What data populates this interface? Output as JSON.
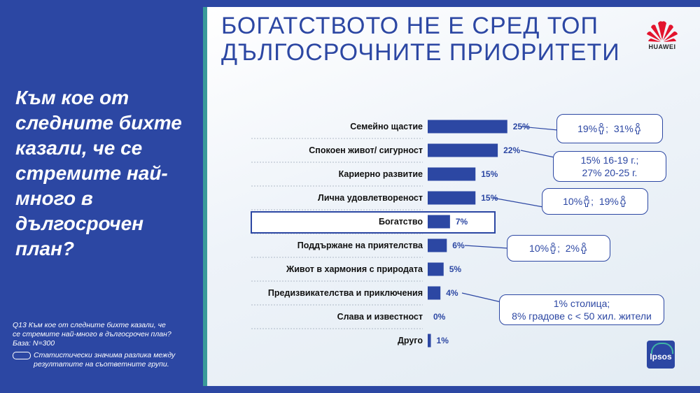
{
  "question": "Към кое от следните бихте казали, че се стремите най-много в дългосрочен план?",
  "footnote": {
    "q_line1": "Q13 Към кое от следните бихте казали, че",
    "q_line2": " се стремите най-много в дългосрочен план?",
    "base": "База: N=300",
    "legend_text": "Статистически значима разлика между резултатите на съответните групи."
  },
  "title_line1": "БОГАТСТВОТО НЕ Е СРЕД ТОП",
  "title_line2": "ДЪЛГОСРОЧНИТЕ ПРИОРИТЕТИ",
  "logos": {
    "huawei": "HUAWEI",
    "ipsos": "Ipsos"
  },
  "colors": {
    "bar": "#2c47a3",
    "panel": "#2c47a3",
    "accent": "#3a9a9a",
    "highlight": "#2c47a3"
  },
  "chart_data": {
    "type": "bar",
    "orientation": "horizontal",
    "categories": [
      "Семейно щастие",
      "Спокоен живот/ сигурност",
      "Кариерно развитие",
      "Лична удовлетвореност",
      "Богатство",
      "Поддържане на приятелства",
      "Живот в хармония с природата",
      "Предизвикателства и приключения",
      "Слава и известност",
      "Друго"
    ],
    "values": [
      25,
      22,
      15,
      15,
      7,
      6,
      5,
      4,
      0,
      1
    ],
    "value_labels": [
      "25%",
      "22%",
      "15%",
      "15%",
      "7%",
      "6%",
      "5%",
      "4%",
      "0%",
      "1%"
    ],
    "highlighted": "Богатство",
    "xlim": [
      0,
      25
    ]
  },
  "callouts": [
    {
      "id": "family",
      "lines": [
        "19%",
        "31%"
      ],
      "icons": [
        "male-icon",
        "female-icon"
      ],
      "target": 0
    },
    {
      "id": "calm",
      "lines": [
        "15% 16-19 г.;",
        "27% 20-25 г."
      ],
      "target": 1
    },
    {
      "id": "satisfaction",
      "lines": [
        "10%",
        "19%"
      ],
      "icons": [
        "male-icon",
        "female-icon"
      ],
      "target": 3
    },
    {
      "id": "friends",
      "lines": [
        "10%",
        "2%"
      ],
      "icons": [
        "male-icon",
        "female-icon"
      ],
      "target": 5
    },
    {
      "id": "adventure",
      "lines": [
        "1% столица;",
        "8% градове с < 50 хил. жители"
      ],
      "target": 7
    }
  ]
}
